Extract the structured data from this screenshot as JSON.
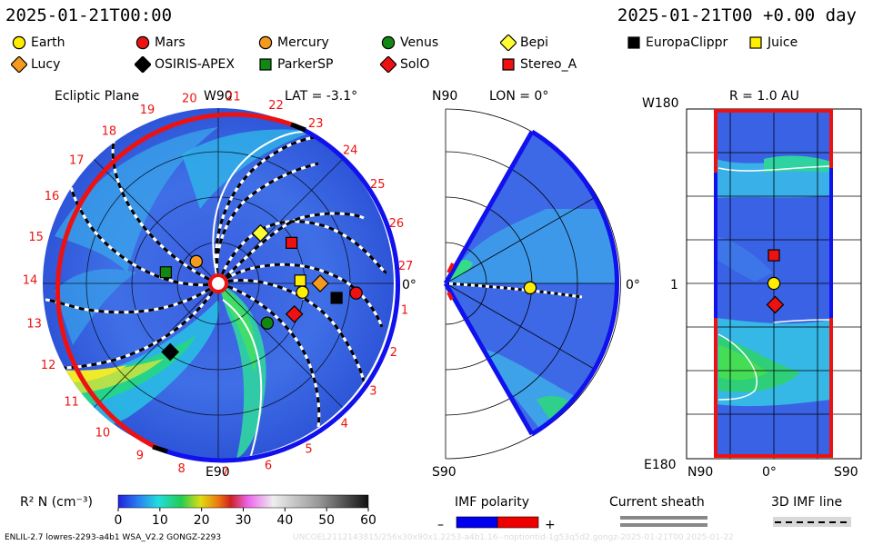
{
  "header": {
    "left_time": "2025-01-21T00:00",
    "right_time": "2025-01-21T00 +0.00 day"
  },
  "legend": [
    {
      "name": "Earth",
      "shape": "circle",
      "color": "#ffee00"
    },
    {
      "name": "Mars",
      "shape": "circle",
      "color": "#ee1111"
    },
    {
      "name": "Mercury",
      "shape": "circle",
      "color": "#f59a1e"
    },
    {
      "name": "Venus",
      "shape": "circle",
      "color": "#118811"
    },
    {
      "name": "Bepi",
      "shape": "diamond",
      "color": "#ffff33"
    },
    {
      "name": "EuropaClippr",
      "shape": "square",
      "color": "#000000"
    },
    {
      "name": "Juice",
      "shape": "square",
      "color": "#ffee00"
    },
    {
      "name": "Lucy",
      "shape": "diamond",
      "color": "#f59a1e"
    },
    {
      "name": "OSIRIS-APEX",
      "shape": "diamond",
      "color": "#000000"
    },
    {
      "name": "ParkerSP",
      "shape": "square",
      "color": "#118811"
    },
    {
      "name": "SolO",
      "shape": "diamond",
      "color": "#ee1111"
    },
    {
      "name": "Stereo_A",
      "shape": "square",
      "color": "#ee1111"
    }
  ],
  "panels": {
    "ecliptic": {
      "title": "Ecliptic Plane",
      "lat": "LAT = -3.1°",
      "top_label": "W90",
      "bottom_label": "E90",
      "right_label": "0°",
      "carrington_numbers": [
        "1",
        "2",
        "3",
        "4",
        "5",
        "6",
        "7",
        "8",
        "9",
        "10",
        "11",
        "12",
        "13",
        "14",
        "15",
        "16",
        "17",
        "18",
        "19",
        "20",
        "21",
        "22",
        "23",
        "24",
        "25",
        "26",
        "27"
      ]
    },
    "meridional": {
      "lon": "LON = 0°",
      "top_label": "N90",
      "bottom_label": "S90",
      "right_label": "0°"
    },
    "radial": {
      "title": "R = 1.0 AU",
      "left_top": "W180",
      "left_mid": "1",
      "left_bottom": "E180",
      "bottom_left": "N90",
      "bottom_mid": "0°",
      "bottom_right": "S90"
    }
  },
  "colorbar": {
    "label": "R² N (cm⁻³)",
    "ticks": [
      "0",
      "10",
      "20",
      "30",
      "40",
      "50",
      "60"
    ],
    "range": [
      0,
      60
    ]
  },
  "imf": {
    "label": "IMF polarity",
    "minus": "–",
    "plus": "+",
    "neg_color": "#0000ee",
    "pos_color": "#ee0000"
  },
  "sheath": {
    "label": "Current sheath"
  },
  "imfline": {
    "label": "3D IMF line"
  },
  "footer": {
    "left": "ENLIL-2.7 lowres-2293-a4b1 WSA_V2.2 GONGZ-2293",
    "right": "UNCOEL2112143815/256x30x90x1.2253-a4b1.16--noptiontid-1g53q5d2.gongz-2025-01-21T00   2025-01-22"
  },
  "chart_data": [
    {
      "type": "heatmap",
      "title": "Ecliptic Plane",
      "subtitle": "LAT = -3.1°",
      "bodies": [
        {
          "name": "Earth",
          "r_au": 0.98,
          "lon_deg": -6
        },
        {
          "name": "Mars",
          "r_au": 1.6,
          "lon_deg": -4
        },
        {
          "name": "Mercury",
          "r_au": 0.36,
          "lon_deg": 135
        },
        {
          "name": "Venus",
          "r_au": 0.73,
          "lon_deg": -39
        },
        {
          "name": "Bepi",
          "r_au": 0.76,
          "lon_deg": 50
        },
        {
          "name": "EuropaClippr",
          "r_au": 1.38,
          "lon_deg": -7
        },
        {
          "name": "Juice",
          "r_au": 0.95,
          "lon_deg": 2
        },
        {
          "name": "Lucy",
          "r_au": 1.18,
          "lon_deg": 0
        },
        {
          "name": "OSIRIS-APEX",
          "r_au": 0.97,
          "lon_deg": -125
        },
        {
          "name": "ParkerSP",
          "r_au": 0.62,
          "lon_deg": 168
        },
        {
          "name": "SolO",
          "r_au": 0.95,
          "lon_deg": -22
        },
        {
          "name": "Stereo_A",
          "r_au": 0.97,
          "lon_deg": 29
        }
      ]
    },
    {
      "type": "heatmap",
      "title": "",
      "subtitle": "LON = 0°",
      "bodies": [
        {
          "name": "Earth",
          "r_au": 0.98,
          "lat_deg": -3
        }
      ]
    },
    {
      "type": "heatmap",
      "title": "R = 1.0 AU",
      "bodies": [
        {
          "name": "Earth",
          "lat_deg": 0,
          "lon_deg": 0
        },
        {
          "name": "Stereo_A",
          "lat_deg": 0,
          "lon_deg": 29
        },
        {
          "name": "SolO",
          "lat_deg": -2,
          "lon_deg": -22
        }
      ]
    }
  ]
}
